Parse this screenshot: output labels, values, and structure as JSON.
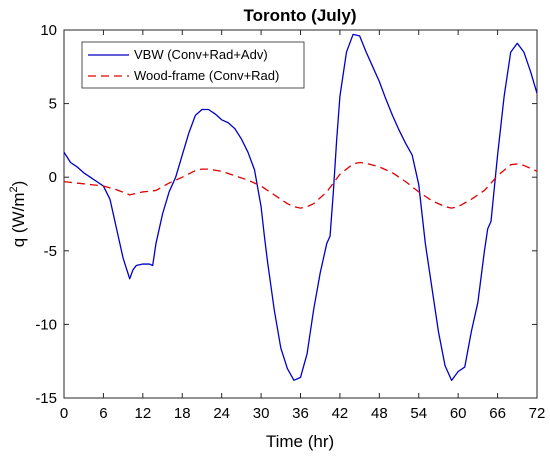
{
  "chart_data": {
    "type": "line",
    "title": "Toronto (July)",
    "xlabel": "Time (hr)",
    "ylabel_main": "q (W/m",
    "ylabel_sup": "2",
    "ylabel_tail": ")",
    "xlim": [
      0,
      72
    ],
    "ylim": [
      -15,
      10
    ],
    "xticks": [
      0,
      6,
      12,
      18,
      24,
      30,
      36,
      42,
      48,
      54,
      60,
      66,
      72
    ],
    "yticks": [
      -15,
      -10,
      -5,
      0,
      5,
      10
    ],
    "grid": false,
    "legend_position": "top-left",
    "series": [
      {
        "name": "VBW (Conv+Rad+Adv)",
        "color": "#0000c8",
        "style": "solid",
        "x": [
          0,
          1,
          2,
          3,
          4,
          5,
          6,
          7,
          8,
          9,
          10,
          10.5,
          11,
          12,
          13,
          13.5,
          14,
          15,
          16,
          17,
          18,
          19,
          20,
          21,
          22,
          23,
          24,
          25,
          26,
          27,
          28,
          29,
          30,
          30.5,
          31,
          32,
          33,
          34,
          35,
          36,
          37,
          38,
          39,
          40,
          40.5,
          41,
          41.5,
          42,
          43,
          44,
          45,
          46,
          47,
          48,
          49,
          50,
          51,
          52,
          53,
          54,
          54.5,
          55,
          56,
          57,
          58,
          59,
          60,
          61,
          62,
          63,
          64,
          64.5,
          65,
          66,
          67,
          68,
          69,
          70,
          71,
          72
        ],
        "values": [
          1.7,
          1.0,
          0.7,
          0.3,
          0.0,
          -0.3,
          -0.6,
          -1.5,
          -3.5,
          -5.5,
          -6.9,
          -6.3,
          -6.0,
          -5.9,
          -5.9,
          -6.0,
          -4.5,
          -2.5,
          -1.0,
          0.0,
          1.5,
          3.0,
          4.2,
          4.6,
          4.6,
          4.3,
          3.9,
          3.7,
          3.3,
          2.6,
          1.7,
          0.5,
          -2.0,
          -4.0,
          -5.8,
          -9.0,
          -11.6,
          -13.0,
          -13.8,
          -13.6,
          -12.0,
          -9.0,
          -6.5,
          -4.5,
          -4.0,
          -1.0,
          2.5,
          5.5,
          8.5,
          9.7,
          9.6,
          8.5,
          7.5,
          6.5,
          5.3,
          4.2,
          3.2,
          2.3,
          1.5,
          -0.5,
          -2.5,
          -4.5,
          -7.5,
          -10.5,
          -12.8,
          -13.8,
          -13.2,
          -12.9,
          -10.5,
          -8.5,
          -5.0,
          -3.5,
          -3.0,
          1.5,
          5.5,
          8.5,
          9.1,
          8.5,
          7.2,
          5.7
        ]
      },
      {
        "name": "Wood-frame (Conv+Rad)",
        "color": "#e00000",
        "style": "dashed",
        "x": [
          0,
          3,
          6,
          8,
          10,
          12,
          14,
          16,
          18,
          20,
          21,
          22,
          24,
          26,
          28,
          30,
          32,
          34,
          35,
          36,
          37,
          38,
          40,
          42,
          44,
          45,
          46,
          48,
          50,
          52,
          54,
          56,
          58,
          59,
          60,
          62,
          64,
          66,
          68,
          69,
          70,
          72
        ],
        "values": [
          -0.3,
          -0.45,
          -0.6,
          -0.85,
          -1.2,
          -1.0,
          -0.9,
          -0.4,
          0.0,
          0.45,
          0.55,
          0.55,
          0.4,
          0.1,
          -0.2,
          -0.6,
          -1.2,
          -1.8,
          -2.0,
          -2.1,
          -2.0,
          -1.8,
          -1.0,
          0.2,
          0.9,
          1.0,
          0.95,
          0.7,
          0.3,
          -0.3,
          -1.0,
          -1.6,
          -2.0,
          -2.1,
          -2.0,
          -1.5,
          -0.9,
          0.1,
          0.85,
          0.9,
          0.8,
          0.4
        ]
      }
    ]
  }
}
